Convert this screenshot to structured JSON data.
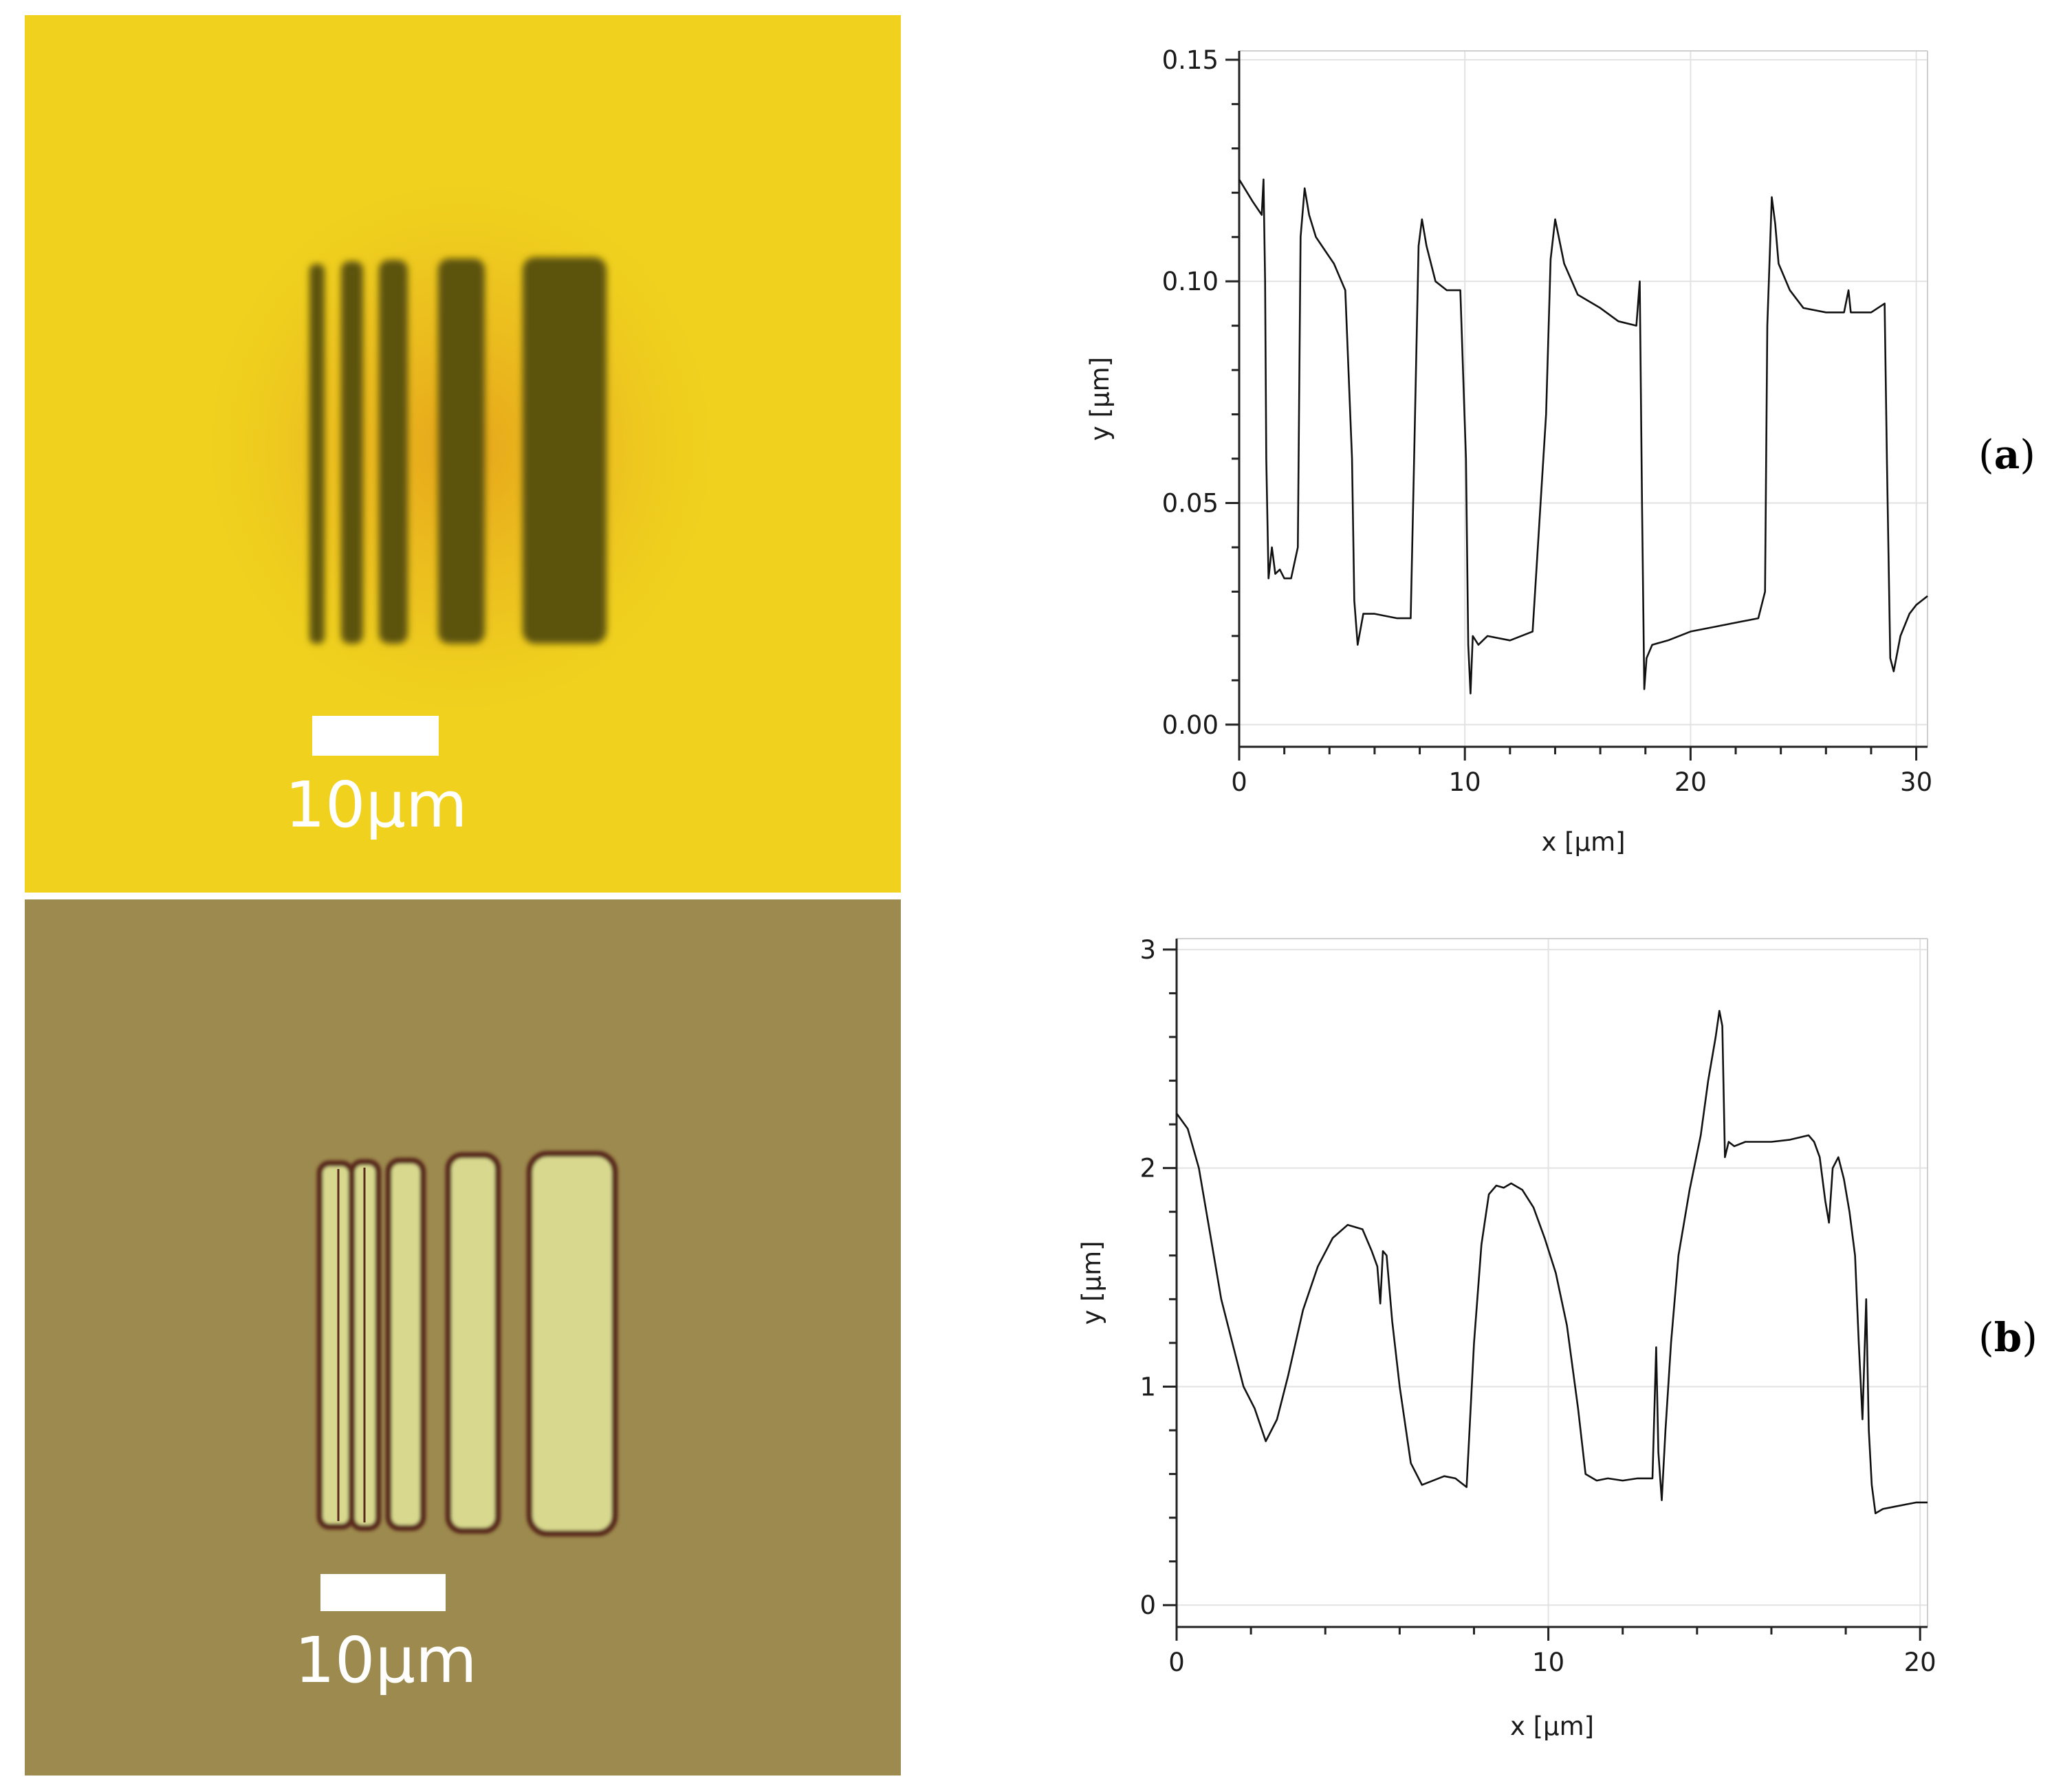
{
  "figure": {
    "panel_labels": [
      "a",
      "b"
    ]
  },
  "micrographs": [
    {
      "scale_label": "10μm",
      "background_color": "#f0d21e",
      "bar_color": "#5c5310",
      "glow_color": "#e8a718"
    },
    {
      "scale_label": "10μm",
      "background_color": "#9c8a4e",
      "fill_color": "#d8d98e",
      "outline_color": "#5a2a1c"
    }
  ],
  "chart_data": [
    {
      "type": "line",
      "xlabel": "x [µm]",
      "ylabel": "y [µm]",
      "xlim": [
        0,
        30.5
      ],
      "ylim": [
        -0.005,
        0.152
      ],
      "xticks": [
        0,
        10,
        20,
        30
      ],
      "xtick_labels": [
        "0",
        "10",
        "20",
        "30"
      ],
      "yticks": [
        0.0,
        0.05,
        0.1,
        0.15
      ],
      "ytick_labels": [
        "0.00",
        "0.05",
        "0.10",
        "0.15"
      ],
      "x_minor_step": 2,
      "y_minor_step": 0.01,
      "grid": true,
      "series": [
        {
          "x": [
            0,
            0.6,
            1.0,
            1.08,
            1.15,
            1.2,
            1.3,
            1.45,
            1.6,
            1.8,
            2.0,
            2.3,
            2.6,
            2.72,
            2.9,
            3.1,
            3.4,
            3.8,
            4.2,
            4.7,
            5.0,
            5.1,
            5.25,
            5.5,
            6.0,
            7.0,
            7.6,
            7.75,
            7.95,
            8.1,
            8.3,
            8.7,
            9.2,
            9.8,
            10.05,
            10.15,
            10.25,
            10.35,
            10.6,
            11.0,
            12.0,
            13.0,
            13.6,
            13.8,
            14.0,
            14.4,
            15.0,
            16.0,
            16.8,
            17.6,
            17.75,
            17.85,
            17.95,
            18.05,
            18.3,
            19.0,
            20.0,
            21.0,
            22.0,
            23.0,
            23.3,
            23.4,
            23.6,
            23.75,
            23.9,
            24.4,
            25.0,
            26.0,
            26.8,
            27.0,
            27.1,
            27.3,
            28.0,
            28.6,
            28.7,
            28.85,
            29.0,
            29.3,
            29.7,
            30.0,
            30.5
          ],
          "y": [
            0.123,
            0.118,
            0.115,
            0.123,
            0.1,
            0.06,
            0.033,
            0.04,
            0.034,
            0.035,
            0.033,
            0.033,
            0.04,
            0.11,
            0.121,
            0.115,
            0.11,
            0.107,
            0.104,
            0.098,
            0.06,
            0.028,
            0.018,
            0.025,
            0.025,
            0.024,
            0.024,
            0.06,
            0.108,
            0.114,
            0.108,
            0.1,
            0.098,
            0.098,
            0.06,
            0.018,
            0.007,
            0.02,
            0.018,
            0.02,
            0.019,
            0.021,
            0.07,
            0.105,
            0.114,
            0.104,
            0.097,
            0.094,
            0.091,
            0.09,
            0.1,
            0.05,
            0.008,
            0.015,
            0.018,
            0.019,
            0.021,
            0.022,
            0.023,
            0.024,
            0.03,
            0.09,
            0.119,
            0.113,
            0.104,
            0.098,
            0.094,
            0.093,
            0.093,
            0.098,
            0.093,
            0.093,
            0.093,
            0.095,
            0.06,
            0.015,
            0.012,
            0.02,
            0.025,
            0.027,
            0.029
          ]
        }
      ]
    },
    {
      "type": "line",
      "xlabel": "x [µm]",
      "ylabel": "y [µm]",
      "xlim": [
        0,
        20.2
      ],
      "ylim": [
        -0.1,
        3.05
      ],
      "xticks": [
        0,
        10,
        20
      ],
      "xtick_labels": [
        "0",
        "10",
        "20"
      ],
      "yticks": [
        0,
        1,
        2,
        3
      ],
      "ytick_labels": [
        "0",
        "1",
        "2",
        "3"
      ],
      "x_minor_step": 2,
      "y_minor_step": 0.2,
      "grid": true,
      "series": [
        {
          "x": [
            0,
            0.3,
            0.6,
            0.9,
            1.2,
            1.5,
            1.8,
            2.1,
            2.4,
            2.7,
            3.0,
            3.4,
            3.8,
            4.2,
            4.6,
            5.0,
            5.25,
            5.4,
            5.48,
            5.55,
            5.65,
            5.8,
            6.0,
            6.3,
            6.6,
            6.9,
            7.2,
            7.5,
            7.8,
            8.0,
            8.2,
            8.4,
            8.6,
            8.8,
            9.0,
            9.3,
            9.6,
            9.9,
            10.2,
            10.5,
            10.8,
            11.0,
            11.3,
            11.6,
            12.0,
            12.4,
            12.8,
            12.9,
            12.96,
            13.05,
            13.15,
            13.3,
            13.5,
            13.8,
            14.1,
            14.3,
            14.5,
            14.6,
            14.68,
            14.75,
            14.85,
            15.0,
            15.3,
            15.6,
            16.0,
            16.5,
            17.0,
            17.15,
            17.3,
            17.45,
            17.55,
            17.65,
            17.8,
            17.95,
            18.1,
            18.25,
            18.35,
            18.45,
            18.55,
            18.62,
            18.7,
            18.8,
            19.0,
            19.3,
            19.6,
            19.9,
            20.2
          ],
          "y": [
            2.25,
            2.18,
            2.0,
            1.7,
            1.4,
            1.2,
            1.0,
            0.9,
            0.75,
            0.85,
            1.05,
            1.35,
            1.55,
            1.68,
            1.74,
            1.72,
            1.62,
            1.55,
            1.38,
            1.62,
            1.6,
            1.3,
            1.0,
            0.65,
            0.55,
            0.57,
            0.59,
            0.58,
            0.54,
            1.2,
            1.65,
            1.88,
            1.92,
            1.91,
            1.93,
            1.9,
            1.82,
            1.68,
            1.52,
            1.28,
            0.9,
            0.6,
            0.57,
            0.58,
            0.57,
            0.58,
            0.58,
            1.18,
            0.7,
            0.48,
            0.8,
            1.2,
            1.6,
            1.9,
            2.15,
            2.4,
            2.6,
            2.72,
            2.65,
            2.05,
            2.12,
            2.1,
            2.12,
            2.12,
            2.12,
            2.13,
            2.15,
            2.12,
            2.05,
            1.85,
            1.75,
            2.0,
            2.05,
            1.95,
            1.8,
            1.6,
            1.2,
            0.85,
            1.4,
            0.8,
            0.55,
            0.42,
            0.44,
            0.45,
            0.46,
            0.47,
            0.47
          ]
        }
      ]
    }
  ]
}
